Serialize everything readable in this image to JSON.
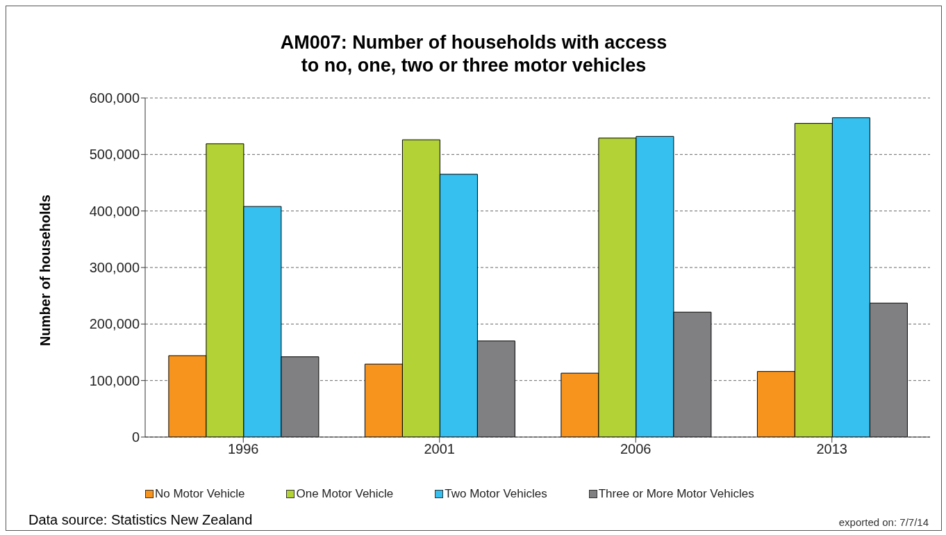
{
  "chart_data": {
    "type": "bar",
    "title": "AM007: Number of households with access\nto no, one, two or three motor vehicles",
    "ylabel": "Number of households",
    "categories": [
      "1996",
      "2001",
      "2006",
      "2013"
    ],
    "series": [
      {
        "name": "No Motor Vehicle",
        "color": "#f7941d",
        "values": [
          144000,
          129000,
          113000,
          116000
        ]
      },
      {
        "name": "One Motor Vehicle",
        "color": "#b2d235",
        "values": [
          519000,
          526000,
          529000,
          555000
        ]
      },
      {
        "name": "Two Motor Vehicles",
        "color": "#36c0ef",
        "values": [
          408000,
          465000,
          532000,
          565000
        ]
      },
      {
        "name": "Three or More Motor Vehicles",
        "color": "#808083",
        "values": [
          142000,
          170000,
          221000,
          237000
        ]
      }
    ],
    "ylim": [
      0,
      600000
    ],
    "yticks": [
      {
        "value": 0,
        "label": "0"
      },
      {
        "value": 100000,
        "label": "100,000"
      },
      {
        "value": 200000,
        "label": "200,000"
      },
      {
        "value": 300000,
        "label": "300,000"
      },
      {
        "value": 400000,
        "label": "400,000"
      },
      {
        "value": 500000,
        "label": "500,000"
      },
      {
        "value": 600000,
        "label": "600,000"
      }
    ],
    "grid": "y",
    "legend": "bottom",
    "annotations": [
      "Data source: Statistics New Zealand",
      "exported on: 7/7/14"
    ]
  }
}
